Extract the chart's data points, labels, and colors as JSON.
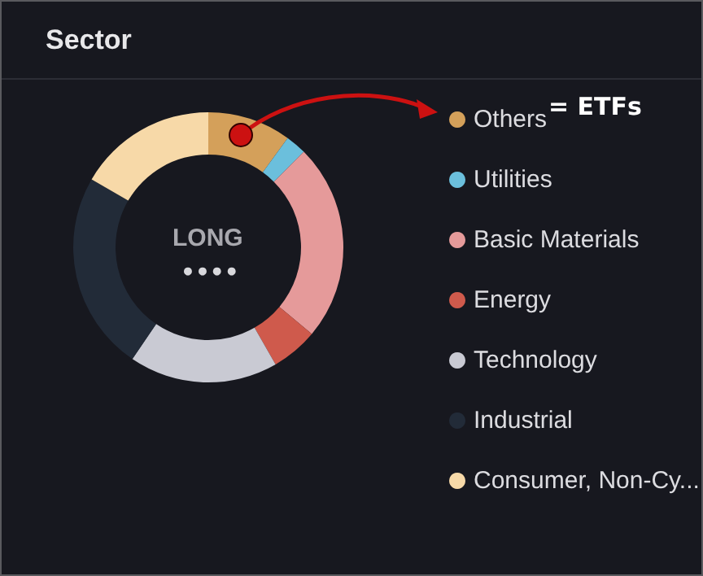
{
  "chart_data": {
    "type": "donut",
    "title": "Sector",
    "categories": [
      "Others",
      "Utilities",
      "Basic Materials",
      "Energy",
      "Technology",
      "Industrial",
      "Consumer, Non-Cy..."
    ],
    "values": [
      10,
      2.5,
      23.6,
      5.6,
      17.8,
      23.9,
      16.6
    ],
    "colors": [
      "#d4a05a",
      "#6bbfdc",
      "#e59a9a",
      "#cf5a4c",
      "#c9cad3",
      "#222b38",
      "#f7d9a8"
    ],
    "annotations": [
      "LONG",
      "••••",
      "= ETFs"
    ],
    "legend": "right"
  }
}
